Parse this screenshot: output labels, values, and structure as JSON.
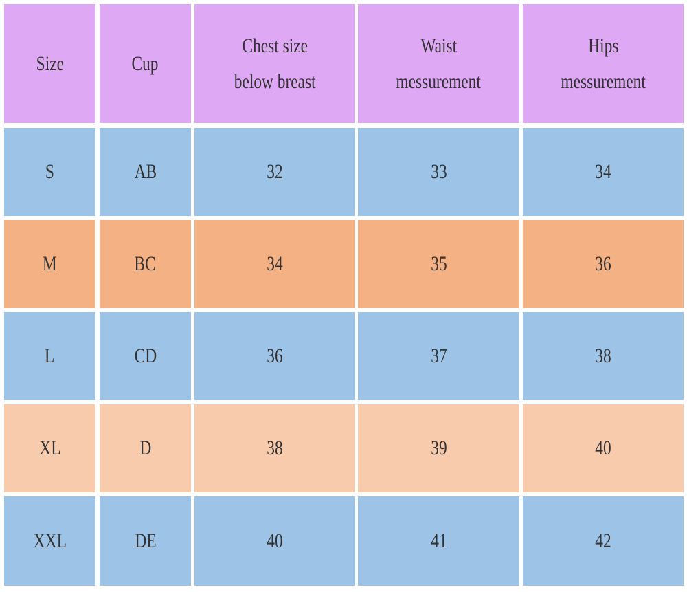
{
  "table": {
    "header": [
      [
        "Size"
      ],
      [
        "Cup"
      ],
      [
        "Chest size",
        "below breast"
      ],
      [
        "Waist",
        "messurement"
      ],
      [
        "Hips",
        "messurement"
      ]
    ],
    "rows": [
      [
        "S",
        "AB",
        32,
        33,
        34
      ],
      [
        "M",
        "BC",
        34,
        35,
        36
      ],
      [
        "L",
        "CD",
        36,
        37,
        38
      ],
      [
        "XL",
        "D",
        38,
        39,
        40
      ],
      [
        "XXL",
        "DE",
        40,
        41,
        42
      ]
    ]
  }
}
